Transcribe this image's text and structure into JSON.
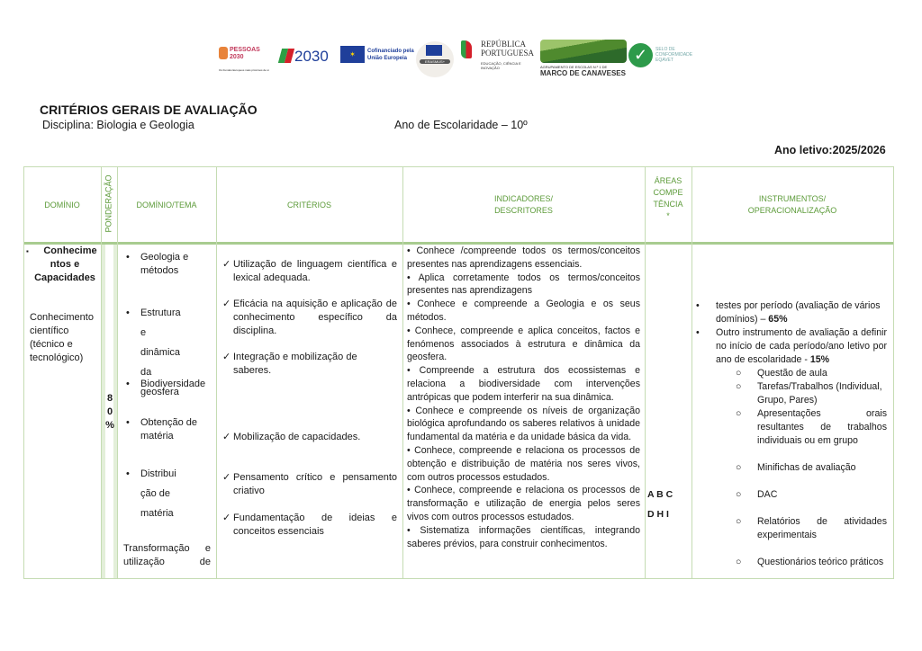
{
  "logos": {
    "pessoas": "PESSOAS 2030",
    "pessoas_tagline": "Os Fundos Europeus mais próximos de si",
    "portugal2030": "2030",
    "eu": "Cofinanciado pela União Europeia",
    "erasmus": "ERASMUS+",
    "republica": "REPÚBLICA PORTUGUESA",
    "republica_sub": "EDUCAÇÃO, CIÊNCIA E INOVAÇÃO",
    "agrupamento": "AGRUPAMENTO DE ESCOLAS N.º 1 DE",
    "agrupamento_name": "MARCO DE CANAVESES",
    "eqavet": "SELO DE CONFORMIDADE EQAVET",
    "colors": {
      "green": "#3f8f3a",
      "eu_blue": "#1f3f9a",
      "red": "#d4202a"
    }
  },
  "doc": {
    "title": "CRITÉRIOS GERAIS DE AVALIAÇÃO",
    "disciplina": "Disciplina: Biologia e Geologia",
    "ano_escolaridade": "Ano de Escolaridade – 10º",
    "ano_letivo": "Ano letivo:2025/2026"
  },
  "table": {
    "header_color": "#5d9b3a",
    "border_color": "#c5dcb3",
    "headers": {
      "dominio": "DOMÍNIO",
      "ponderacao": "PONDERAÇÃO",
      "tema": "DOMÍNIO/TEMA",
      "criterios": "CRITÉRIOS",
      "indicadores_1": "INDICADORES/",
      "indicadores_2": "DESCRITORES",
      "areas_1": "ÁREAS",
      "areas_2": "COMPE",
      "areas_3": "TÊNCIA",
      "areas_4": "*",
      "instrumentos_1": "INSTRUMENTOS/",
      "instrumentos_2": "OPERACIONALIZAÇÃO"
    },
    "dominio": {
      "bullet": "▪",
      "title_lines": [
        "Conhecime",
        "ntos e",
        "Capacidades"
      ],
      "description": "Conhecimento científico (técnico e tecnológico)"
    },
    "ponderacao": [
      "8",
      "0",
      "%"
    ],
    "temas": [
      "Geologia e métodos",
      "Estrutura e dinâmica da geosfera",
      "Biodiversidade",
      "Obtenção de matéria",
      "Distribui ção de matéria"
    ],
    "tema_extra": [
      "Transformação",
      "e",
      "utilização",
      "de"
    ],
    "criterios": [
      "Utilização de linguagem científica e lexical adequada.",
      "Eficácia na aquisição e aplicação de conhecimento específico da disciplina.",
      "Integração e mobilização de saberes.",
      "Mobilização de capacidades.",
      "Pensamento crítico e pensamento criativo",
      "Fundamentação de ideias e conceitos essenciais"
    ],
    "indicadores": [
      "• Conhece /compreende todos os termos/conceitos presentes nas aprendizagens essenciais.",
      "• Aplica corretamente todos os termos/conceitos presentes nas aprendizagens",
      "• Conhece e compreende a Geologia e os seus métodos.",
      "• Conhece, compreende e aplica conceitos, factos e fenómenos associados à estrutura e dinâmica da geosfera.",
      "• Compreende a estrutura dos ecossistemas e relaciona a biodiversidade com intervenções antrópicas que podem interferir na sua dinâmica.",
      "• Conhece e compreende os níveis de organização biológica aprofundando os saberes relativos à unidade fundamental da matéria e da unidade básica da vida.",
      "• Conhece, compreende e relaciona os processos de obtenção e distribuição de matéria nos seres vivos, com outros processos estudados.",
      "• Conhece, compreende e relaciona os processos de transformação e utilização de energia pelos seres vivos com outros processos estudados.",
      "• Sistematiza informações científicas, integrando saberes prévios, para construir conhecimentos."
    ],
    "areas": [
      "A B C",
      "D H I"
    ],
    "instrumentos": {
      "item1": "testes por período (avaliação de vários domínios) – ",
      "item1_pct": "65%",
      "item2": "Outro instrumento de avaliação a definir no início de cada período/ano letivo por ano de escolaridade - ",
      "item2_pct": "15%",
      "subitems": [
        "Questão de aula",
        "Tarefas/Trabalhos (Individual, Grupo, Pares)",
        "Apresentações orais resultantes de trabalhos individuais ou em grupo",
        "Minifichas de avaliação",
        "DAC",
        "Relatórios de atividades experimentais",
        "Questionários teórico práticos"
      ]
    }
  }
}
